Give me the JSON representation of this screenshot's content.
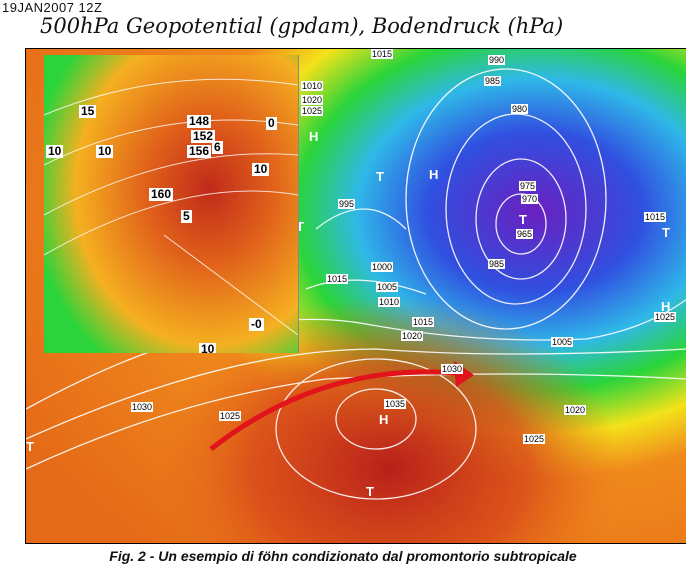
{
  "header": {
    "date": "19JAN2007 12Z",
    "title": "500hPa Geopotential (gpdam), Bodendruck (hPa)"
  },
  "map": {
    "isobar_labels": [
      "990",
      "985",
      "980",
      "975",
      "970",
      "965",
      "985",
      "995",
      "1000",
      "1005",
      "1010",
      "1015",
      "1015",
      "1020",
      "1030",
      "1030",
      "1025",
      "1035",
      "1025",
      "1020",
      "1005",
      "1015",
      "1025",
      "1010",
      "1020",
      "1025",
      "1015"
    ],
    "pressure_symbols": [
      "H",
      "T",
      "H",
      "T",
      "H",
      "T",
      "T",
      "H",
      "T",
      "T"
    ],
    "arrow_color": "#e0141a",
    "colors": {
      "high": "#b8201a",
      "mid": "#f08a1c",
      "yellow": "#f3e21a",
      "green": "#2ad43a",
      "cyan": "#2fb8e8",
      "blue": "#3050e0",
      "low": "#7a28c8"
    }
  },
  "inset": {
    "labels": [
      "148",
      "152",
      "156",
      "160",
      "15",
      "10",
      "10",
      "6",
      "5",
      "0",
      "10",
      "-0",
      "10"
    ]
  },
  "caption": "Fig. 2 - Un esempio di föhn condizionato dal promontorio subtropicale"
}
